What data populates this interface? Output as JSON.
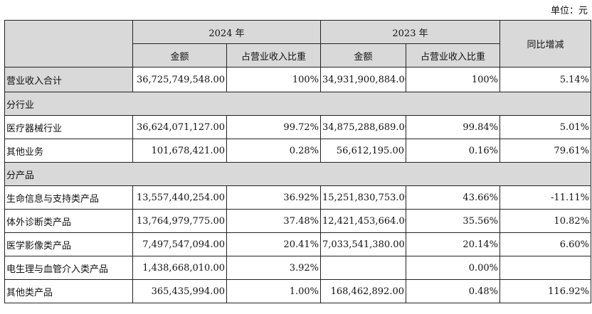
{
  "unit_label": "单位：元",
  "header": {
    "year_2024": "2024 年",
    "year_2023": "2023 年",
    "yoy": "同比增减",
    "amount": "金额",
    "ratio": "占营业收入比重"
  },
  "total": {
    "label": "营业收入合计",
    "amt2024": "36,725,749,548.00",
    "pct2024": "100%",
    "amt2023": "34,931,900,884.00",
    "pct2023": "100%",
    "yoy": "5.14%"
  },
  "sections": [
    {
      "title": "分行业",
      "rows": [
        {
          "label": "医疗器械行业",
          "amt2024": "36,624,071,127.00",
          "pct2024": "99.72%",
          "amt2023": "34,875,288,689.00",
          "pct2023": "99.84%",
          "yoy": "5.01%"
        },
        {
          "label": "其他业务",
          "amt2024": "101,678,421.00",
          "pct2024": "0.28%",
          "amt2023": "56,612,195.00",
          "pct2023": "0.16%",
          "yoy": "79.61%"
        }
      ]
    },
    {
      "title": "分产品",
      "rows": [
        {
          "label": "生命信息与支持类产品",
          "amt2024": "13,557,440,254.00",
          "pct2024": "36.92%",
          "amt2023": "15,251,830,753.00",
          "pct2023": "43.66%",
          "yoy": "-11.11%"
        },
        {
          "label": "体外诊断类产品",
          "amt2024": "13,764,979,775.00",
          "pct2024": "37.48%",
          "amt2023": "12,421,453,664.00",
          "pct2023": "35.56%",
          "yoy": "10.82%"
        },
        {
          "label": "医学影像类产品",
          "amt2024": "7,497,547,094.00",
          "pct2024": "20.41%",
          "amt2023": "7,033,541,380.00",
          "pct2023": "20.14%",
          "yoy": "6.60%"
        },
        {
          "label": "电生理与血管介入类产品",
          "amt2024": "1,438,668,010.00",
          "pct2024": "3.92%",
          "amt2023": "",
          "pct2023": "0.00%",
          "yoy": ""
        },
        {
          "label": "其他类产品",
          "amt2024": "365,435,994.00",
          "pct2024": "1.00%",
          "amt2023": "168,462,892.00",
          "pct2023": "0.48%",
          "yoy": "116.92%"
        }
      ]
    }
  ]
}
